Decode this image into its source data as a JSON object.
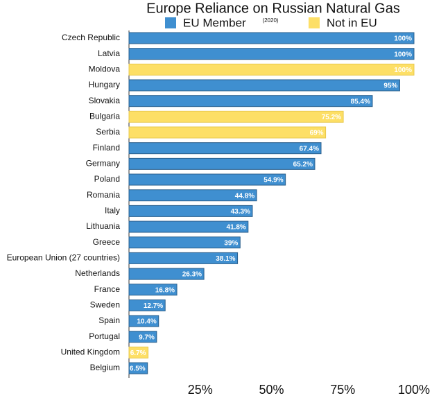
{
  "chart_data": {
    "type": "barh",
    "title": "Europe Reliance on Russian Natural Gas",
    "subtitle": "(2020)",
    "categories": [
      "Czech Republic",
      "Latvia",
      "Moldova",
      "Hungary",
      "Slovakia",
      "Bulgaria",
      "Serbia",
      "Finland",
      "Germany",
      "Poland",
      "Romania",
      "Italy",
      "Lithuania",
      "Greece",
      "European Union (27 countries)",
      "Netherlands",
      "France",
      "Sweden",
      "Spain",
      "Portugal",
      "United Kingdom",
      "Belgium"
    ],
    "series": [
      {
        "name": "EU Member",
        "color": "#3f8fd0",
        "values": [
          100,
          100,
          null,
          95,
          85.4,
          null,
          null,
          67.4,
          65.2,
          54.9,
          44.8,
          43.3,
          41.8,
          39,
          38.1,
          26.3,
          16.8,
          12.7,
          10.4,
          9.7,
          null,
          6.5
        ],
        "value_labels": [
          "100%",
          "100%",
          null,
          "95%",
          "85.4%",
          null,
          null,
          "67.4%",
          "65.2%",
          "54.9%",
          "44.8%",
          "43.3%",
          "41.8%",
          "39%",
          "38.1%",
          "26.3%",
          "16.8%",
          "12.7%",
          "10.4%",
          "9.7%",
          null,
          "6.5%"
        ]
      },
      {
        "name": "Not in EU",
        "color": "#fddf66",
        "values": [
          null,
          null,
          100,
          null,
          null,
          75.2,
          69,
          null,
          null,
          null,
          null,
          null,
          null,
          null,
          null,
          null,
          null,
          null,
          null,
          null,
          6.7,
          null
        ],
        "value_labels": [
          null,
          null,
          "100%",
          null,
          null,
          "75.2%",
          "69%",
          null,
          null,
          null,
          null,
          null,
          null,
          null,
          null,
          null,
          null,
          null,
          null,
          null,
          "6.7%",
          null
        ]
      }
    ],
    "xlim": [
      0,
      100
    ],
    "xticks": [
      {
        "value": 25,
        "label": "25%"
      },
      {
        "value": 50,
        "label": "50%"
      },
      {
        "value": 75,
        "label": "75%"
      },
      {
        "value": 100,
        "label": "100%"
      }
    ],
    "grid": false
  }
}
